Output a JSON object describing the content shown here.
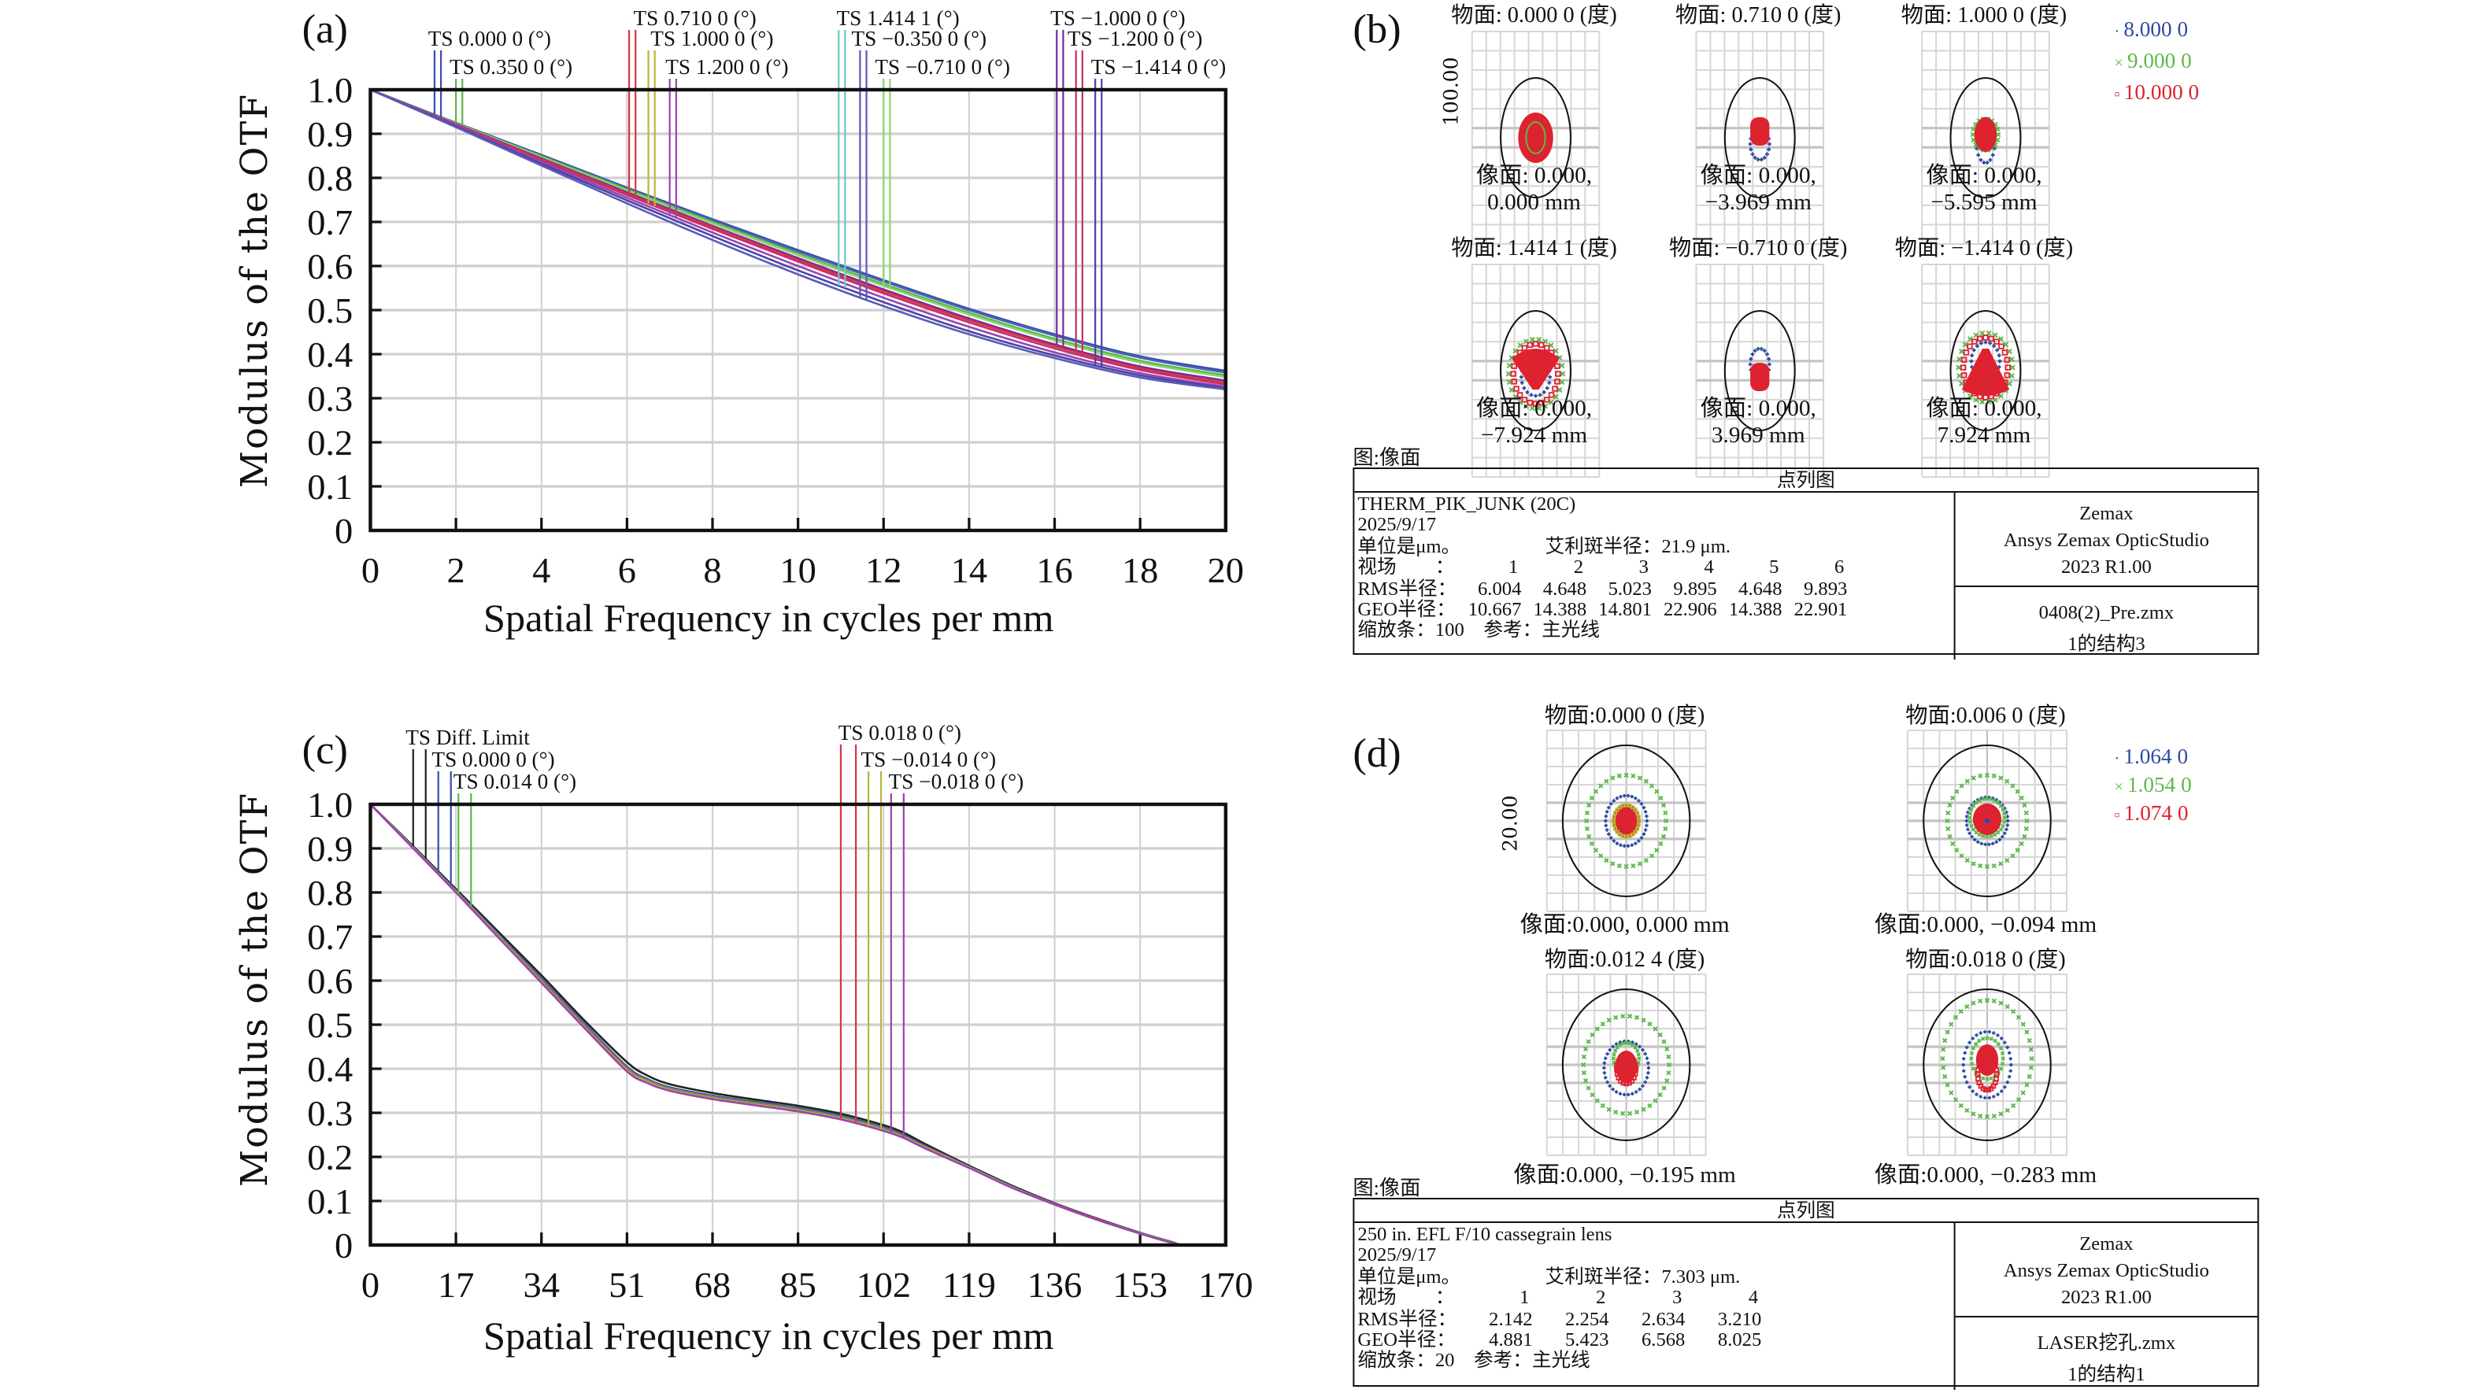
{
  "panels": {
    "a": {
      "tag": "(a)"
    },
    "b": {
      "tag": "(b)"
    },
    "c": {
      "tag": "(c)"
    },
    "d": {
      "tag": "(d)"
    }
  },
  "chart_data": [
    {
      "id": "a",
      "type": "line",
      "title": "",
      "xlabel": "Spatial Frequency in cycles per mm",
      "ylabel": "Modulus of the OTF",
      "xlim": [
        0,
        20
      ],
      "ylim": [
        0,
        1.0
      ],
      "xticks": [
        "0",
        "2",
        "4",
        "6",
        "8",
        "10",
        "12",
        "14",
        "16",
        "18",
        "20"
      ],
      "yticks": [
        "0",
        "0.1",
        "0.2",
        "0.3",
        "0.4",
        "0.5",
        "0.6",
        "0.7",
        "0.8",
        "0.9",
        "1.0"
      ],
      "grid": true,
      "legend_placement": "top",
      "legend": [
        {
          "label": "TS 0.000 0 (°)",
          "color": "#3a4fa8"
        },
        {
          "label": "TS 0.350 0 (°)",
          "color": "#5cb84a"
        },
        {
          "label": "TS 0.710 0 (°)",
          "color": "#d8344a"
        },
        {
          "label": "TS 1.000 0 (°)",
          "color": "#b8b83a"
        },
        {
          "label": "TS 1.200 0 (°)",
          "color": "#9a44b0"
        },
        {
          "label": "TS 1.414 1 (°)",
          "color": "#6cc8c8"
        },
        {
          "label": "TS −0.350 0 (°)",
          "color": "#5a5ab8"
        },
        {
          "label": "TS −0.710 0 (°)",
          "color": "#8ad46c"
        },
        {
          "label": "TS −1.000 0 (°)",
          "color": "#7a2a9a"
        },
        {
          "label": "TS −1.200 0 (°)",
          "color": "#c4306a"
        },
        {
          "label": "TS −1.414 0 (°)",
          "color": "#4a44a8"
        }
      ],
      "x": [
        0,
        2,
        4,
        6,
        8,
        10,
        12,
        14,
        16,
        18,
        20
      ],
      "series": [
        {
          "name": "T 0.000 0",
          "color": "#3a4fa8",
          "values": [
            1.0,
            0.925,
            0.852,
            0.778,
            0.706,
            0.636,
            0.568,
            0.503,
            0.445,
            0.395,
            0.362
          ]
        },
        {
          "name": "S 0.000 0",
          "color": "#4a62b8",
          "values": [
            1.0,
            0.924,
            0.85,
            0.776,
            0.703,
            0.633,
            0.565,
            0.5,
            0.442,
            0.392,
            0.358
          ]
        },
        {
          "name": "T 0.350 0",
          "color": "#5cb84a",
          "values": [
            1.0,
            0.924,
            0.849,
            0.774,
            0.7,
            0.628,
            0.559,
            0.494,
            0.435,
            0.385,
            0.352
          ]
        },
        {
          "name": "S 0.350 0",
          "color": "#8ad46c",
          "values": [
            1.0,
            0.923,
            0.847,
            0.771,
            0.697,
            0.625,
            0.555,
            0.49,
            0.431,
            0.381,
            0.348
          ]
        },
        {
          "name": "T 0.710 0",
          "color": "#7a2a9a",
          "values": [
            1.0,
            0.922,
            0.844,
            0.767,
            0.691,
            0.618,
            0.547,
            0.481,
            0.422,
            0.372,
            0.34
          ]
        },
        {
          "name": "S 0.710 0",
          "color": "#d8344a",
          "values": [
            1.0,
            0.921,
            0.842,
            0.764,
            0.688,
            0.614,
            0.543,
            0.477,
            0.418,
            0.368,
            0.335
          ]
        },
        {
          "name": "T 1.000 0",
          "color": "#c4306a",
          "values": [
            1.0,
            0.92,
            0.84,
            0.761,
            0.684,
            0.61,
            0.538,
            0.472,
            0.413,
            0.364,
            0.331
          ]
        },
        {
          "name": "S 1.000 0",
          "color": "#9a44b0",
          "values": [
            1.0,
            0.919,
            0.836,
            0.755,
            0.676,
            0.6,
            0.528,
            0.462,
            0.404,
            0.357,
            0.326
          ]
        },
        {
          "name": "T 1.414 1",
          "color": "#4a44a8",
          "values": [
            1.0,
            0.917,
            0.832,
            0.749,
            0.668,
            0.59,
            0.518,
            0.452,
            0.397,
            0.352,
            0.323
          ]
        },
        {
          "name": "S 1.414 1",
          "color": "#5a5ab8",
          "values": [
            1.0,
            0.915,
            0.828,
            0.742,
            0.659,
            0.581,
            0.509,
            0.445,
            0.391,
            0.347,
            0.32
          ]
        }
      ]
    },
    {
      "id": "c",
      "type": "line",
      "title": "",
      "xlabel": "Spatial Frequency in cycles per mm",
      "ylabel": "Modulus of the OTF",
      "xlim": [
        0,
        170
      ],
      "ylim": [
        0,
        1.0
      ],
      "xticks": [
        "0",
        "17",
        "34",
        "51",
        "68",
        "85",
        "102",
        "119",
        "136",
        "153",
        "170"
      ],
      "yticks": [
        "0",
        "0.1",
        "0.2",
        "0.3",
        "0.4",
        "0.5",
        "0.6",
        "0.7",
        "0.8",
        "0.9",
        "1.0"
      ],
      "grid": true,
      "legend_placement": "top",
      "legend": [
        {
          "label": "TS Diff. Limit",
          "color": "#222222"
        },
        {
          "label": "TS 0.000 0 (°)",
          "color": "#3a4fa8"
        },
        {
          "label": "TS 0.014 0 (°)",
          "color": "#5cb84a"
        },
        {
          "label": "TS 0.018 0 (°)",
          "color": "#d8344a"
        },
        {
          "label": "TS −0.014 0 (°)",
          "color": "#b8b83a"
        },
        {
          "label": "TS −0.018 0 (°)",
          "color": "#9a44b0"
        }
      ],
      "x": [
        0,
        8.5,
        17,
        25.5,
        34,
        42.5,
        51,
        55,
        59.5,
        68,
        76.5,
        85,
        93.5,
        102,
        106,
        110.5,
        119,
        127.5,
        136,
        144.5,
        153,
        159,
        162,
        170
      ],
      "series": [
        {
          "name": "Diff. Limit",
          "color": "#222222",
          "values": [
            1.0,
            0.905,
            0.808,
            0.71,
            0.612,
            0.51,
            0.415,
            0.385,
            0.365,
            0.345,
            0.33,
            0.316,
            0.298,
            0.272,
            0.255,
            0.228,
            0.18,
            0.135,
            0.095,
            0.06,
            0.028,
            0.008,
            0.0,
            0.0
          ]
        },
        {
          "name": "TS 0.000 0",
          "color": "#3a4fa8",
          "values": [
            1.0,
            0.903,
            0.805,
            0.705,
            0.605,
            0.503,
            0.405,
            0.377,
            0.358,
            0.339,
            0.325,
            0.311,
            0.293,
            0.267,
            0.25,
            0.224,
            0.178,
            0.133,
            0.094,
            0.059,
            0.027,
            0.007,
            0.0,
            0.0
          ]
        },
        {
          "name": "TS 0.014 0",
          "color": "#5cb84a",
          "values": [
            1.0,
            0.902,
            0.803,
            0.702,
            0.601,
            0.499,
            0.401,
            0.374,
            0.355,
            0.336,
            0.322,
            0.308,
            0.29,
            0.264,
            0.247,
            0.222,
            0.177,
            0.132,
            0.093,
            0.058,
            0.027,
            0.007,
            0.0,
            0.0
          ]
        },
        {
          "name": "TS 0.018 0",
          "color": "#d8344a",
          "values": [
            1.0,
            0.901,
            0.802,
            0.7,
            0.599,
            0.497,
            0.399,
            0.372,
            0.353,
            0.334,
            0.32,
            0.306,
            0.288,
            0.262,
            0.246,
            0.221,
            0.176,
            0.131,
            0.093,
            0.058,
            0.026,
            0.006,
            0.0,
            0.0
          ]
        },
        {
          "name": "TS −0.014 0",
          "color": "#b8b83a",
          "values": [
            1.0,
            0.901,
            0.801,
            0.699,
            0.597,
            0.495,
            0.397,
            0.371,
            0.352,
            0.333,
            0.319,
            0.305,
            0.287,
            0.261,
            0.245,
            0.22,
            0.176,
            0.131,
            0.092,
            0.057,
            0.026,
            0.006,
            0.0,
            0.0
          ]
        },
        {
          "name": "TS −0.018 0",
          "color": "#9a44b0",
          "values": [
            1.0,
            0.9,
            0.8,
            0.697,
            0.595,
            0.493,
            0.394,
            0.368,
            0.35,
            0.331,
            0.317,
            0.303,
            0.285,
            0.259,
            0.243,
            0.218,
            0.175,
            0.13,
            0.092,
            0.057,
            0.026,
            0.006,
            0.0,
            0.0
          ]
        }
      ]
    }
  ],
  "spot_b": {
    "scale_label": "100.00",
    "legend": [
      {
        "label": "8.000 0",
        "color": "#2e4aa0",
        "marker": "+"
      },
      {
        "label": "9.000 0",
        "color": "#5cb84a",
        "marker": "x"
      },
      {
        "label": "10.000 0",
        "color": "#dd2230",
        "marker": "□"
      }
    ],
    "fields": [
      {
        "title": "物面: 0.000 0 (度)",
        "cap1": "像面: 0.000,",
        "cap2": "0.000 mm",
        "shape": "solid"
      },
      {
        "title": "物面: 0.710 0 (度)",
        "cap1": "像面: 0.000,",
        "cap2": "−3.969 mm",
        "shape": "up"
      },
      {
        "title": "物面: 1.000 0 (度)",
        "cap1": "像面: 0.000,",
        "cap2": "−5.595 mm",
        "shape": "upg"
      },
      {
        "title": "物面: 1.414 1 (度)",
        "cap1": "像面: 0.000,",
        "cap2": "−7.924 mm",
        "shape": "coma-down"
      },
      {
        "title": "物面: −0.710 0 (度)",
        "cap1": "像面: 0.000,",
        "cap2": "3.969 mm",
        "shape": "down"
      },
      {
        "title": "物面: −1.414 0 (度)",
        "cap1": "像面: 0.000,",
        "cap2": "7.924 mm",
        "shape": "coma-up"
      }
    ],
    "surface_label": "图:像面",
    "table": {
      "header": "点列图",
      "lens_name": "THERM_PIK_JUNK (20C)",
      "date": "2025/9/17",
      "units": "单位是μm。",
      "airy": "艾利斑半径：21.9 μm.",
      "field_label": "视场　　：",
      "fields": [
        "1",
        "2",
        "3",
        "4",
        "5",
        "6"
      ],
      "rms_label": "RMS半径：",
      "rms": [
        "6.004",
        "4.648",
        "5.023",
        "9.895",
        "4.648",
        "9.893"
      ],
      "geo_label": "GEO半径：",
      "geo": [
        "10.667",
        "14.388",
        "14.801",
        "22.906",
        "14.388",
        "22.901"
      ],
      "scale": "缩放条：100　参考：主光线",
      "brand1": "Zemax",
      "brand2": "Ansys Zemax OpticStudio",
      "brand3": "2023 R1.00",
      "file": "0408(2)_Pre.zmx",
      "config": "1的结构3"
    }
  },
  "spot_d": {
    "scale_label": "20.00",
    "legend": [
      {
        "label": "1.064 0",
        "color": "#2e4aa0",
        "marker": "+"
      },
      {
        "label": "1.054 0",
        "color": "#5cb84a",
        "marker": "x"
      },
      {
        "label": "1.074 0",
        "color": "#dd2230",
        "marker": "□"
      }
    ],
    "fields": [
      {
        "title": "物面:0.000 0 (度)",
        "cap": "像面:0.000, 0.000 mm",
        "shape": "rings0"
      },
      {
        "title": "物面:0.006 0 (度)",
        "cap": "像面:0.000, −0.094 mm",
        "shape": "rings1"
      },
      {
        "title": "物面:0.012 4 (度)",
        "cap": "像面:0.000, −0.195 mm",
        "shape": "rings2"
      },
      {
        "title": "物面:0.018 0 (度)",
        "cap": "像面:0.000, −0.283 mm",
        "shape": "rings3"
      }
    ],
    "surface_label": "图:像面",
    "table": {
      "header": "点列图",
      "lens_name": "250 in. EFL F/10 cassegrain lens",
      "date": "2025/9/17",
      "units": "单位是μm。",
      "airy": "艾利斑半径：7.303 μm.",
      "field_label": "视场　　：",
      "fields": [
        "1",
        "2",
        "3",
        "4"
      ],
      "rms_label": "RMS半径：",
      "rms": [
        "2.142",
        "2.254",
        "2.634",
        "3.210"
      ],
      "geo_label": "GEO半径：",
      "geo": [
        "4.881",
        "5.423",
        "6.568",
        "8.025"
      ],
      "scale": "缩放条：20　参考：主光线",
      "brand1": "Zemax",
      "brand2": "Ansys Zemax OpticStudio",
      "brand3": "2023 R1.00",
      "file": "LASER挖孔.zmx",
      "config": "1的结构1"
    }
  }
}
